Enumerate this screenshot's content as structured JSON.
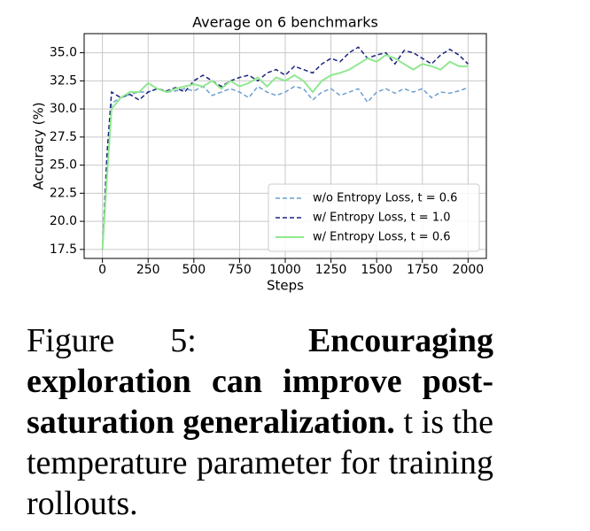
{
  "chart_data": {
    "type": "line",
    "title": "Average on 6 benchmarks",
    "x_label": "Steps",
    "y_label": "Accuracy (%)",
    "x": [
      0,
      25,
      50,
      100,
      150,
      200,
      250,
      300,
      350,
      400,
      450,
      500,
      550,
      600,
      650,
      700,
      750,
      800,
      850,
      900,
      950,
      1000,
      1050,
      1100,
      1150,
      1200,
      1250,
      1300,
      1350,
      1400,
      1450,
      1500,
      1550,
      1600,
      1650,
      1700,
      1750,
      1800,
      1850,
      1900,
      1950,
      2000
    ],
    "series": [
      {
        "name": "w/o Entropy Loss, t = 0.6",
        "color": "#6f9fd0",
        "dash": true,
        "values": [
          17.5,
          25.0,
          30.5,
          31.0,
          31.3,
          31.5,
          31.5,
          31.8,
          31.5,
          31.6,
          31.8,
          31.6,
          32.0,
          31.2,
          31.5,
          31.8,
          31.5,
          31.0,
          32.0,
          31.5,
          31.2,
          31.5,
          32.0,
          31.8,
          30.8,
          31.5,
          31.8,
          31.2,
          31.5,
          31.8,
          30.6,
          31.5,
          31.8,
          31.4,
          31.8,
          31.5,
          31.8,
          31.0,
          31.5,
          31.4,
          31.6,
          31.9
        ]
      },
      {
        "name": "w/ Entropy Loss, t = 1.0",
        "color": "#1a237e",
        "dash": true,
        "values": [
          17.5,
          26.0,
          31.5,
          31.0,
          31.3,
          30.8,
          31.5,
          31.8,
          31.6,
          31.9,
          31.5,
          32.5,
          33.0,
          32.5,
          32.0,
          32.5,
          32.8,
          33.0,
          32.5,
          33.2,
          33.5,
          33.0,
          33.8,
          33.5,
          33.2,
          34.0,
          34.5,
          34.2,
          35.0,
          35.5,
          34.5,
          34.8,
          35.0,
          34.0,
          35.2,
          35.0,
          34.5,
          34.0,
          34.8,
          35.3,
          34.8,
          34.0
        ]
      },
      {
        "name": "w/ Entropy Loss, t = 0.6",
        "color": "#90e890",
        "dash": false,
        "values": [
          17.5,
          24.0,
          30.0,
          31.0,
          31.5,
          31.5,
          32.3,
          31.8,
          31.5,
          31.8,
          32.0,
          32.2,
          32.0,
          32.5,
          31.8,
          32.5,
          32.0,
          32.3,
          32.8,
          32.0,
          32.8,
          32.5,
          33.0,
          32.5,
          31.5,
          32.5,
          33.0,
          33.2,
          33.5,
          34.0,
          34.5,
          34.2,
          34.8,
          34.5,
          34.0,
          33.5,
          34.0,
          33.8,
          33.5,
          34.2,
          33.8,
          33.8
        ]
      }
    ],
    "xlim": [
      -100,
      2100
    ],
    "ylim": [
      16.7,
      36.7
    ],
    "xticks": [
      0,
      250,
      500,
      750,
      1000,
      1250,
      1500,
      1750,
      2000
    ],
    "yticks": [
      17.5,
      {
        "value": 20,
        "label": "20.0"
      },
      22.5,
      {
        "value": 25,
        "label": "25.0"
      },
      27.5,
      {
        "value": 30,
        "label": "30.0"
      },
      32.5,
      {
        "value": 35,
        "label": "35.0"
      }
    ],
    "grid": true,
    "legend": "lower right"
  },
  "caption": {
    "label": "Figure 5:",
    "bold": "Encouraging exploration can improve post-saturation generalization.",
    "text": "t is the temperature parameter for training rollouts."
  }
}
